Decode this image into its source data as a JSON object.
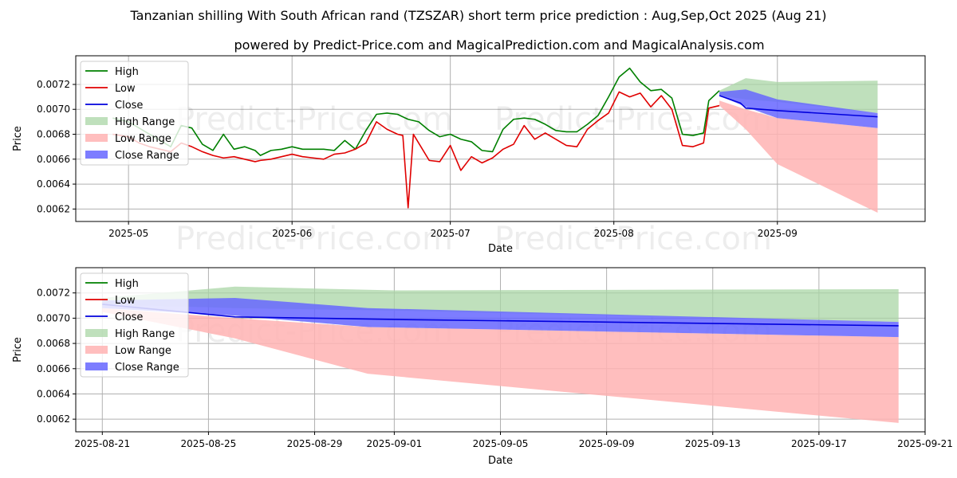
{
  "title": "Tanzanian shilling With South African rand (TZSZAR) short term price prediction : Aug,Sep,Oct 2025 (Aug 21)",
  "subtitle": "powered by Predict-Price.com and MagicalPrediction.com and MagicalAnalysis.com",
  "watermark": "Predict-Price.com",
  "colors": {
    "high": "#008000",
    "low": "#e00000",
    "close": "#0000dd",
    "high_range": "#a9d6a6",
    "low_range": "#ffb3b3",
    "close_range": "#6666ff"
  },
  "chart_data": [
    {
      "type": "line",
      "xlabel": "Date",
      "ylabel": "Price",
      "legend_position": "top-left",
      "grid": true,
      "x_ticks": [
        "2025-05",
        "2025-06",
        "2025-07",
        "2025-08",
        "2025-09"
      ],
      "y_ticks": [
        "0.0062",
        "0.0064",
        "0.0066",
        "0.0068",
        "0.0070",
        "0.0072"
      ],
      "ylim": [
        0.0061,
        0.00743
      ],
      "xlim": [
        "2025-04-21",
        "2025-09-29"
      ],
      "legend": [
        "High",
        "Low",
        "Close",
        "High Range",
        "Low Range",
        "Close Range"
      ],
      "series": [
        {
          "name": "High",
          "x": [
            "2025-04-28",
            "2025-05-01",
            "2025-05-03",
            "2025-05-05",
            "2025-05-07",
            "2025-05-09",
            "2025-05-11",
            "2025-05-13",
            "2025-05-15",
            "2025-05-17",
            "2025-05-19",
            "2025-05-21",
            "2025-05-23",
            "2025-05-25",
            "2025-05-26",
            "2025-05-28",
            "2025-05-30",
            "2025-06-01",
            "2025-06-03",
            "2025-06-05",
            "2025-06-07",
            "2025-06-09",
            "2025-06-11",
            "2025-06-13",
            "2025-06-15",
            "2025-06-17",
            "2025-06-19",
            "2025-06-21",
            "2025-06-23",
            "2025-06-25",
            "2025-06-27",
            "2025-06-29",
            "2025-07-01",
            "2025-07-03",
            "2025-07-05",
            "2025-07-07",
            "2025-07-09",
            "2025-07-11",
            "2025-07-13",
            "2025-07-15",
            "2025-07-17",
            "2025-07-19",
            "2025-07-21",
            "2025-07-23",
            "2025-07-25",
            "2025-07-27",
            "2025-07-29",
            "2025-07-31",
            "2025-08-02",
            "2025-08-04",
            "2025-08-06",
            "2025-08-08",
            "2025-08-10",
            "2025-08-12",
            "2025-08-14",
            "2025-08-16",
            "2025-08-18",
            "2025-08-19",
            "2025-08-21"
          ],
          "values": [
            0.00693,
            0.0069,
            0.00685,
            0.0068,
            0.00675,
            0.0067,
            0.00687,
            0.00685,
            0.00672,
            0.00667,
            0.0068,
            0.00668,
            0.0067,
            0.00667,
            0.00663,
            0.00667,
            0.00668,
            0.0067,
            0.00668,
            0.00668,
            0.00668,
            0.00667,
            0.00675,
            0.00668,
            0.00683,
            0.00696,
            0.00697,
            0.00696,
            0.00692,
            0.0069,
            0.00683,
            0.00678,
            0.0068,
            0.00676,
            0.00674,
            0.00667,
            0.00666,
            0.00684,
            0.00692,
            0.00693,
            0.00692,
            0.00688,
            0.00683,
            0.00682,
            0.00682,
            0.00688,
            0.00695,
            0.0071,
            0.00726,
            0.00733,
            0.00722,
            0.00715,
            0.00716,
            0.00709,
            0.0068,
            0.00679,
            0.00681,
            0.00707,
            0.00715
          ]
        },
        {
          "name": "Low",
          "x": [
            "2025-04-28",
            "2025-05-01",
            "2025-05-03",
            "2025-05-05",
            "2025-05-07",
            "2025-05-09",
            "2025-05-11",
            "2025-05-13",
            "2025-05-15",
            "2025-05-17",
            "2025-05-19",
            "2025-05-21",
            "2025-05-23",
            "2025-05-25",
            "2025-05-26",
            "2025-05-28",
            "2025-05-30",
            "2025-06-01",
            "2025-06-03",
            "2025-06-05",
            "2025-06-07",
            "2025-06-09",
            "2025-06-11",
            "2025-06-13",
            "2025-06-15",
            "2025-06-17",
            "2025-06-19",
            "2025-06-21",
            "2025-06-22",
            "2025-06-23",
            "2025-06-24",
            "2025-06-27",
            "2025-06-29",
            "2025-07-01",
            "2025-07-03",
            "2025-07-05",
            "2025-07-07",
            "2025-07-09",
            "2025-07-11",
            "2025-07-13",
            "2025-07-15",
            "2025-07-17",
            "2025-07-19",
            "2025-07-21",
            "2025-07-23",
            "2025-07-25",
            "2025-07-27",
            "2025-07-29",
            "2025-07-31",
            "2025-08-02",
            "2025-08-04",
            "2025-08-06",
            "2025-08-08",
            "2025-08-10",
            "2025-08-12",
            "2025-08-14",
            "2025-08-16",
            "2025-08-18",
            "2025-08-19",
            "2025-08-21"
          ],
          "values": [
            0.0068,
            0.00678,
            0.00673,
            0.0067,
            0.00668,
            0.00666,
            0.00673,
            0.0067,
            0.00666,
            0.00663,
            0.00661,
            0.00662,
            0.0066,
            0.00658,
            0.00659,
            0.0066,
            0.00662,
            0.00664,
            0.00662,
            0.00661,
            0.0066,
            0.00664,
            0.00665,
            0.00668,
            0.00673,
            0.0069,
            0.00684,
            0.0068,
            0.00679,
            0.00621,
            0.0068,
            0.00659,
            0.00658,
            0.00671,
            0.00651,
            0.00662,
            0.00657,
            0.00661,
            0.00668,
            0.00672,
            0.00687,
            0.00676,
            0.00681,
            0.00676,
            0.00671,
            0.0067,
            0.00684,
            0.00691,
            0.00697,
            0.00714,
            0.0071,
            0.00713,
            0.00702,
            0.00711,
            0.007,
            0.00671,
            0.0067,
            0.00673,
            0.00701,
            0.00703
          ]
        },
        {
          "name": "Close",
          "x": [
            "2025-08-21",
            "2025-08-25",
            "2025-08-26",
            "2025-09-01",
            "2025-09-20"
          ],
          "values": [
            0.00711,
            0.00705,
            0.00701,
            0.00699,
            0.00694
          ]
        }
      ],
      "ranges": [
        {
          "name": "High Range",
          "x": [
            "2025-08-21",
            "2025-08-26",
            "2025-09-01",
            "2025-09-20"
          ],
          "upper": [
            0.00715,
            0.00725,
            0.00722,
            0.00723
          ],
          "lower": [
            0.00711,
            0.00708,
            0.00706,
            0.00697
          ]
        },
        {
          "name": "Low Range",
          "x": [
            "2025-08-21",
            "2025-08-26",
            "2025-09-01",
            "2025-09-20"
          ],
          "upper": [
            0.00707,
            0.007,
            0.00693,
            0.00685
          ],
          "lower": [
            0.00703,
            0.00684,
            0.00656,
            0.00617
          ]
        },
        {
          "name": "Close Range",
          "x": [
            "2025-08-21",
            "2025-08-26",
            "2025-09-01",
            "2025-09-20"
          ],
          "upper": [
            0.00714,
            0.00716,
            0.00708,
            0.00697
          ],
          "lower": [
            0.00711,
            0.00702,
            0.00693,
            0.00685
          ]
        }
      ]
    },
    {
      "type": "line",
      "xlabel": "Date",
      "ylabel": "Price",
      "legend_position": "top-left",
      "grid": true,
      "x_ticks": [
        "2025-08-21",
        "2025-08-25",
        "2025-08-29",
        "2025-09-01",
        "2025-09-05",
        "2025-09-09",
        "2025-09-13",
        "2025-09-17",
        "2025-09-21"
      ],
      "y_ticks": [
        "0.0062",
        "0.0064",
        "0.0066",
        "0.0068",
        "0.0070",
        "0.0072"
      ],
      "ylim": [
        0.0061,
        0.0074
      ],
      "xlim": [
        "2025-08-20",
        "2025-09-21"
      ],
      "legend": [
        "High",
        "Low",
        "Close",
        "High Range",
        "Low Range",
        "Close Range"
      ],
      "series": [
        {
          "name": "Close",
          "x": [
            "2025-08-21",
            "2025-08-24",
            "2025-08-26",
            "2025-09-01",
            "2025-09-20"
          ],
          "values": [
            0.00711,
            0.00705,
            0.00701,
            0.00699,
            0.00694
          ]
        }
      ],
      "ranges": [
        {
          "name": "High Range",
          "x": [
            "2025-08-21",
            "2025-08-26",
            "2025-09-01",
            "2025-09-20"
          ],
          "upper": [
            0.00716,
            0.00725,
            0.00722,
            0.00723
          ],
          "lower": [
            0.00711,
            0.00708,
            0.00706,
            0.00697
          ]
        },
        {
          "name": "Low Range",
          "x": [
            "2025-08-21",
            "2025-08-26",
            "2025-08-31",
            "2025-09-20"
          ],
          "upper": [
            0.00708,
            0.007,
            0.00693,
            0.00685
          ],
          "lower": [
            0.00705,
            0.00684,
            0.00656,
            0.00617
          ]
        },
        {
          "name": "Close Range",
          "x": [
            "2025-08-21",
            "2025-08-26",
            "2025-08-31",
            "2025-09-20"
          ],
          "upper": [
            0.00714,
            0.00716,
            0.00708,
            0.00697
          ],
          "lower": [
            0.00708,
            0.00702,
            0.00693,
            0.00685
          ]
        }
      ]
    }
  ]
}
